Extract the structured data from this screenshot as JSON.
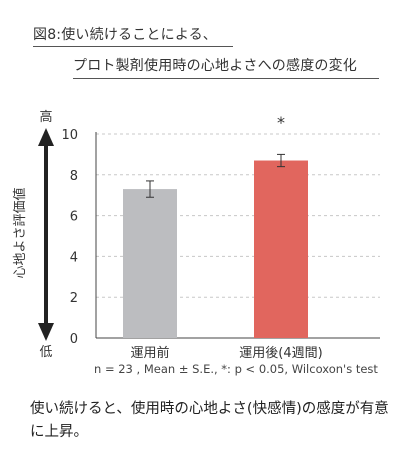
{
  "figure": {
    "title_line1": "図8:使い続けることによる、",
    "title_line2": "プロト製剤使用時の心地よさへの感度の変化",
    "note": "n = 23 , Mean ± S.E., *: p < 0.05, Wilcoxon's test",
    "summary": "使い続けると、使用時の心地よさ(快感情)の感度が有意に上昇。"
  },
  "chart_data": {
    "type": "bar",
    "categories": [
      "運用前",
      "運用後(4週間)"
    ],
    "values": [
      7.3,
      8.7
    ],
    "errors": [
      0.4,
      0.3
    ],
    "colors": [
      "#bcbdc0",
      "#e1665e"
    ],
    "ylabel": "心地よさ評価値",
    "y_top_label": "高",
    "y_bottom_label": "低",
    "ylim": [
      0,
      10
    ],
    "yticks": [
      0,
      2,
      4,
      6,
      8,
      10
    ],
    "significance_marks": [
      "",
      "*"
    ],
    "grid": true
  }
}
